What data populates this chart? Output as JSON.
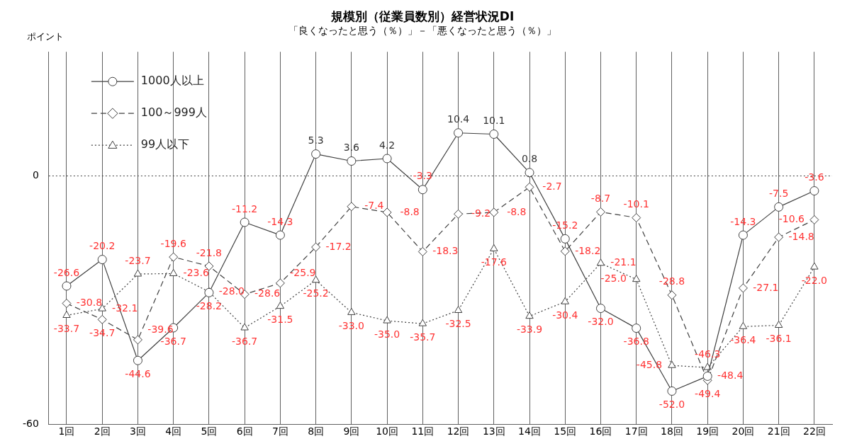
{
  "chart_data": {
    "type": "line",
    "title": "規模別（従業員数別）経営状況DI",
    "subtitle": "「良くなったと思う（％）」－「悪くなったと思う（％）」",
    "ylabel": "ポイント",
    "categories": [
      "1回",
      "2回",
      "3回",
      "4回",
      "5回",
      "6回",
      "7回",
      "8回",
      "9回",
      "10回",
      "11回",
      "12回",
      "13回",
      "14回",
      "15回",
      "16回",
      "17回",
      "18回",
      "19回",
      "20回",
      "21回",
      "22回"
    ],
    "series": [
      {
        "name": "1000人以上",
        "color": "#404040",
        "marker": "circle",
        "line_style": "solid",
        "values": [
          -26.6,
          -20.2,
          -44.6,
          -36.7,
          -28.2,
          -11.2,
          -14.3,
          5.3,
          3.6,
          4.2,
          -3.3,
          10.4,
          10.1,
          0.8,
          -15.2,
          -32.0,
          -36.8,
          -52.0,
          -48.4,
          -14.3,
          -7.5,
          -3.6
        ],
        "value_labels": [
          "-26.6",
          "-20.2",
          "-44.6",
          "-36.7",
          "-28.2",
          "-11.2",
          "-14.3",
          "5.3",
          "3.6",
          "4.2",
          "-3.3",
          "10.4",
          "10.1",
          "0.8",
          "-15.2",
          "-32.0",
          "-36.8",
          "-52.0",
          "-48.4",
          "-14.3",
          "-7.5",
          "-3.6"
        ]
      },
      {
        "name": "100～999人",
        "color": "#404040",
        "marker": "diamond",
        "line_style": "dashed",
        "values": [
          -30.8,
          -34.7,
          -39.6,
          -19.6,
          -21.8,
          -28.6,
          -25.9,
          -17.2,
          -7.4,
          -8.8,
          -18.3,
          -9.2,
          -8.8,
          -2.7,
          -18.2,
          -8.7,
          -10.1,
          -28.8,
          -49.4,
          -27.1,
          -14.8,
          -10.6
        ],
        "value_labels": [
          "-30.8",
          "-34.7",
          "-39.6",
          "-19.6",
          "-21.8",
          "-28.6",
          "-25.9",
          "-17.2",
          "-7.4",
          "-8.8",
          "-18.3",
          "-9.2",
          "-8.8",
          "-2.7",
          "-18.2",
          "-8.7",
          "-10.1",
          "-28.8",
          "-49.4",
          "-27.1",
          "-14.8",
          "-10.6"
        ]
      },
      {
        "name": "99人以下",
        "color": "#404040",
        "marker": "triangle",
        "line_style": "dotted",
        "values": [
          -33.7,
          -32.1,
          -23.7,
          -23.6,
          -28.0,
          -36.7,
          -31.5,
          -25.2,
          -33.0,
          -35.0,
          -35.7,
          -32.5,
          -17.6,
          -33.9,
          -30.4,
          -21.1,
          -25.0,
          -45.8,
          -46.3,
          -36.4,
          -36.1,
          -22.0
        ],
        "value_labels": [
          "-33.7",
          "-32.1",
          "-23.7",
          "-23.6",
          "-28.0",
          "-36.7",
          "-31.5",
          "-25.2",
          "-33.0",
          "-35.0",
          "-35.7",
          "-32.5",
          "-17.6",
          "-33.9",
          "-30.4",
          "-21.1",
          "-25.0",
          "-45.8",
          "-46.3",
          "-36.4",
          "-36.1",
          "-22.0"
        ]
      }
    ],
    "ylim": [
      -60,
      30
    ],
    "yticks": [
      0,
      -60
    ],
    "grid": "x",
    "legend": "top left",
    "ref_lines": [
      {
        "axis": "y",
        "value": 0,
        "label": null,
        "color": "#404040",
        "line_style": "dotted"
      }
    ]
  }
}
